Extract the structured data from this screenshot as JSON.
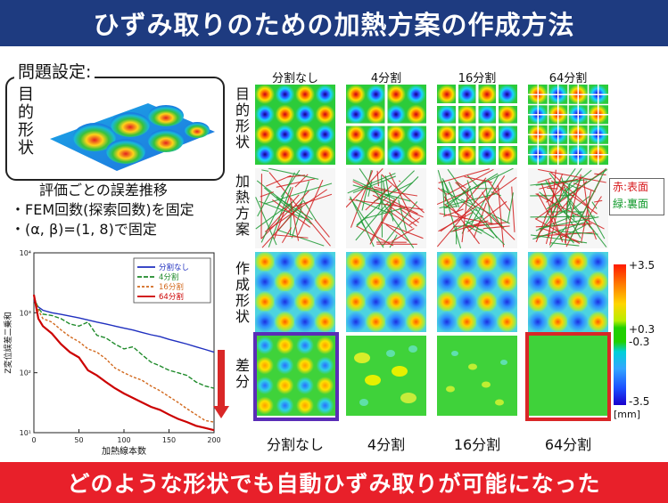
{
  "header": {
    "title": "ひずみ取りのための加熱方案の作成方法"
  },
  "footer": {
    "message": "どのような形状でも自動ひずみ取りが可能になった"
  },
  "problem": {
    "heading": "問題設定:",
    "target_shape_label": "目的形状",
    "eval_title": "評価ごとの誤差推移",
    "condition_1": "・FEM回数(探索回数)を固定",
    "condition_2": "・(α, β)=(1, 8)で固定"
  },
  "grid": {
    "columns": [
      "分割なし",
      "4分割",
      "16分割",
      "64分割"
    ],
    "column_footers": [
      "分割なし",
      "4分割",
      "16分割",
      "64分割"
    ],
    "rows": [
      "目的形状",
      "加熱方案",
      "作成形状",
      "差分"
    ]
  },
  "heating_legend": {
    "red": "赤:表面",
    "green": "緑:裏面"
  },
  "colorbar": {
    "max": "+3.5",
    "upper_mid": "+0.3",
    "lower_mid": "-0.3",
    "min": "-3.5",
    "unit": "[mm]"
  },
  "colors": {
    "header_bg": "#1e3b80",
    "footer_bg": "#e8202a",
    "highlight_none": "#5a2db7",
    "highlight_64": "#d92727"
  },
  "chart_data": {
    "type": "line",
    "xlabel": "加熱線本数",
    "ylabel": "Z変位誤差二乗和",
    "xlim": [
      0,
      200
    ],
    "ylim": [
      10,
      10000
    ],
    "yscale": "log",
    "x_ticks": [
      "0",
      "50",
      "100",
      "150",
      "200"
    ],
    "y_ticks": [
      "10¹",
      "10²",
      "10³",
      "10⁴"
    ],
    "legend_position": "top-right",
    "series": [
      {
        "name": "分割なし",
        "color": "#1f2fbf",
        "x": [
          0,
          5,
          10,
          20,
          30,
          40,
          50,
          60,
          70,
          80,
          90,
          100,
          110,
          120,
          130,
          140,
          150,
          160,
          170,
          180,
          190,
          200
        ],
        "y": [
          1600,
          1250,
          1100,
          1000,
          940,
          880,
          820,
          760,
          700,
          650,
          600,
          555,
          515,
          470,
          430,
          400,
          360,
          330,
          300,
          270,
          245,
          220
        ]
      },
      {
        "name": "4分割",
        "color": "#1e8a2a",
        "x": [
          0,
          5,
          10,
          20,
          30,
          40,
          50,
          60,
          70,
          80,
          90,
          100,
          110,
          120,
          130,
          140,
          150,
          160,
          170,
          180,
          190,
          200
        ],
        "y": [
          1800,
          1200,
          950,
          900,
          800,
          650,
          600,
          700,
          420,
          380,
          300,
          250,
          270,
          200,
          150,
          130,
          110,
          100,
          90,
          70,
          60,
          55
        ]
      },
      {
        "name": "16分割",
        "color": "#d2691e",
        "x": [
          0,
          5,
          10,
          20,
          30,
          40,
          50,
          60,
          70,
          80,
          90,
          100,
          110,
          120,
          130,
          140,
          150,
          160,
          170,
          180,
          190,
          200
        ],
        "y": [
          1900,
          1100,
          800,
          700,
          520,
          400,
          330,
          250,
          220,
          170,
          120,
          100,
          85,
          75,
          60,
          50,
          40,
          32,
          25,
          20,
          16,
          15
        ]
      },
      {
        "name": "64分割",
        "color": "#cc0000",
        "x": [
          0,
          5,
          10,
          20,
          30,
          40,
          50,
          60,
          70,
          80,
          90,
          100,
          110,
          120,
          130,
          140,
          150,
          160,
          170,
          180,
          190,
          200
        ],
        "y": [
          2000,
          800,
          600,
          450,
          300,
          220,
          180,
          110,
          90,
          70,
          55,
          45,
          38,
          32,
          27,
          24,
          20,
          17,
          15,
          13,
          12,
          11
        ]
      }
    ]
  }
}
